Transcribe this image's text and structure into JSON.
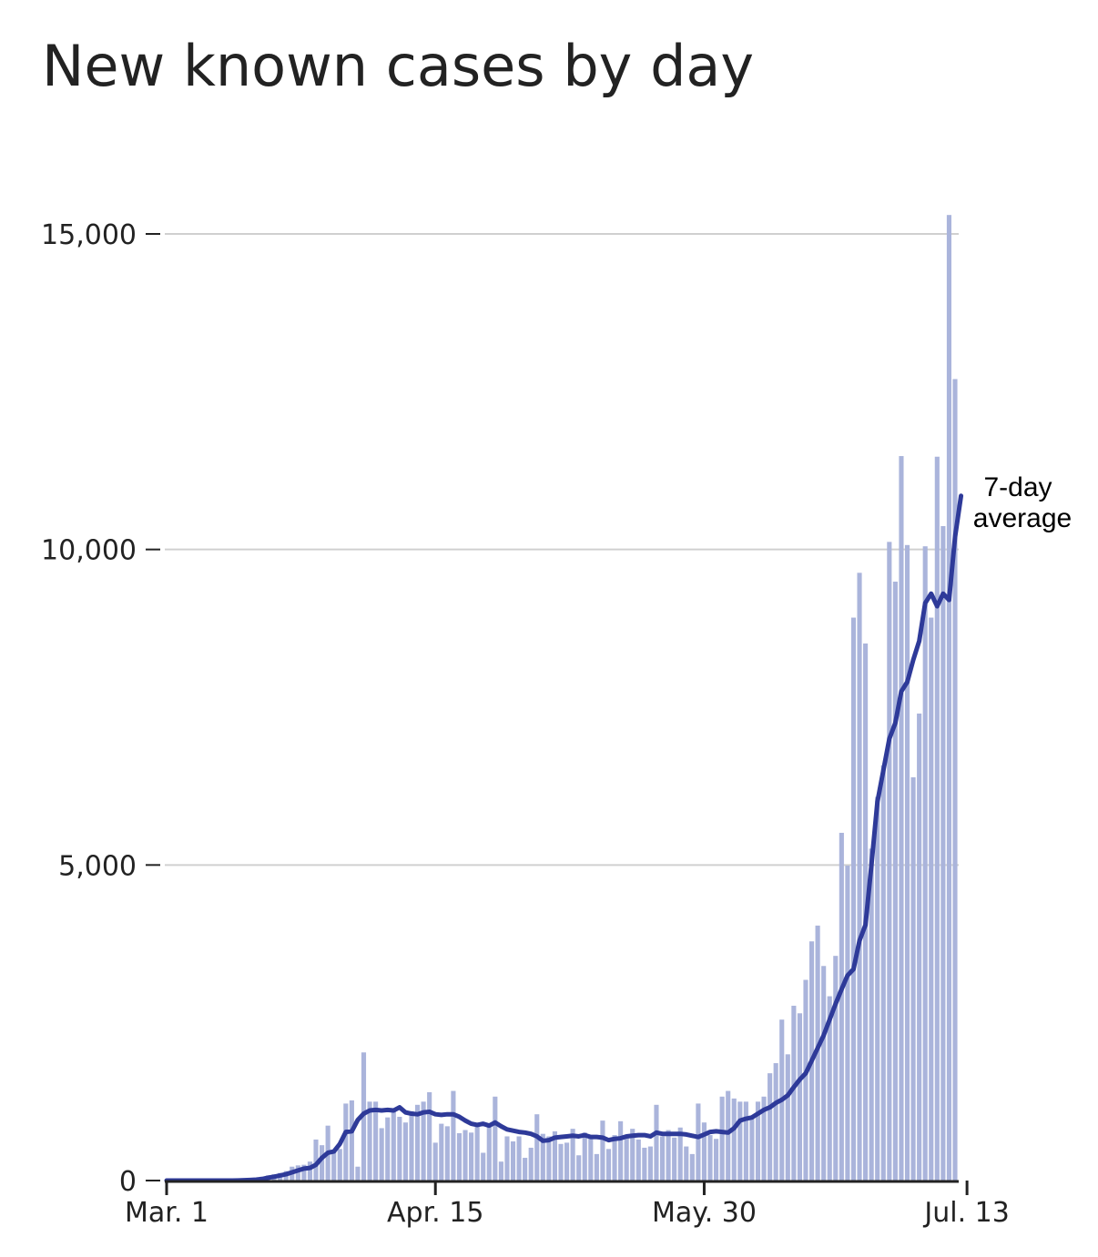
{
  "title": "New known cases by day",
  "chart_data": {
    "type": "bar",
    "title": "New known cases by day",
    "x_start": "2020-03-01",
    "x_end": "2020-07-13",
    "x_ticks": [
      "Mar. 1",
      "Apr. 15",
      "May. 30",
      "Jul. 13"
    ],
    "y_ticks": [
      "0",
      "5,000",
      "10,000",
      "15,000"
    ],
    "ylim": [
      0,
      15300
    ],
    "grid": true,
    "colors": {
      "bars": "#aab4db",
      "line": "#2e3a99",
      "grid": "#d0d0d0",
      "axis": "#222222"
    },
    "values": [
      0,
      0,
      0,
      0,
      0,
      0,
      0,
      0,
      0,
      0,
      0,
      5,
      10,
      20,
      30,
      40,
      60,
      80,
      100,
      120,
      150,
      220,
      240,
      250,
      300,
      650,
      560,
      870,
      480,
      500,
      1220,
      1270,
      220,
      2030,
      1250,
      1250,
      830,
      1000,
      1100,
      1010,
      920,
      1100,
      1200,
      1250,
      1400,
      600,
      900,
      860,
      1420,
      750,
      800,
      760,
      900,
      440,
      880,
      1330,
      300,
      700,
      620,
      700,
      360,
      520,
      1050,
      740,
      700,
      780,
      580,
      600,
      820,
      400,
      760,
      700,
      420,
      950,
      500,
      720,
      940,
      700,
      820,
      650,
      520,
      540,
      1200,
      700,
      800,
      680,
      840,
      540,
      420,
      1220,
      920,
      720,
      660,
      1330,
      1420,
      1300,
      1250,
      1250,
      980,
      1250,
      1330,
      1700,
      1860,
      2550,
      2000,
      2770,
      2650,
      3180,
      3790,
      4040,
      3400,
      2920,
      3560,
      5510,
      4990,
      8920,
      9630,
      8510,
      5260,
      6080,
      6580,
      10120,
      9490,
      11480,
      10070,
      6390,
      7400,
      10050,
      8920,
      11470,
      10370,
      15300,
      12700
    ],
    "avg": [
      0,
      0,
      0,
      0,
      0,
      0,
      0,
      0,
      0,
      0,
      0,
      0,
      2,
      5,
      10,
      15,
      25,
      45,
      60,
      80,
      100,
      130,
      160,
      190,
      200,
      250,
      360,
      440,
      460,
      580,
      770,
      780,
      960,
      1060,
      1110,
      1120,
      1110,
      1120,
      1110,
      1160,
      1080,
      1060,
      1050,
      1080,
      1090,
      1050,
      1040,
      1050,
      1050,
      1010,
      950,
      900,
      880,
      900,
      870,
      920,
      860,
      810,
      790,
      770,
      760,
      740,
      700,
      630,
      640,
      680,
      690,
      700,
      710,
      700,
      720,
      690,
      690,
      680,
      640,
      660,
      670,
      700,
      710,
      720,
      720,
      700,
      760,
      740,
      740,
      740,
      740,
      730,
      710,
      690,
      730,
      770,
      780,
      770,
      760,
      830,
      950,
      980,
      1000,
      1060,
      1120,
      1160,
      1230,
      1280,
      1350,
      1480,
      1600,
      1700,
      1900,
      2100,
      2300,
      2550,
      2800,
      3030,
      3250,
      3350,
      3800,
      4050,
      5000,
      6000,
      6500,
      7000,
      7250,
      7750,
      7900,
      8250,
      8550,
      9150,
      9300,
      9100,
      9300,
      9200,
      10200,
      10850
    ],
    "avg_label_line1": "7-day",
    "avg_label_line2": "average"
  }
}
